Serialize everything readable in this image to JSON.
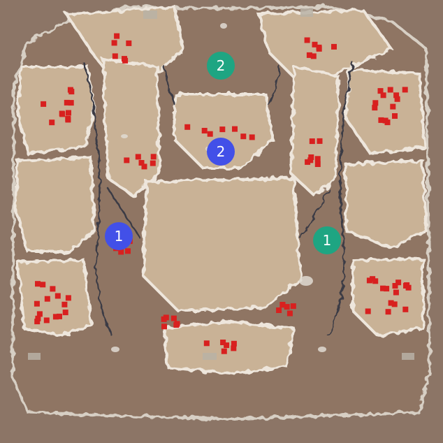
{
  "map": {
    "colors": {
      "background": "#8c7566",
      "lowground": "#8f7464",
      "highground": "#c9b296",
      "cliff_edge": "#e7e0d6",
      "cliff_shadow": "#3a3a44",
      "mineral": "#d8201f",
      "doodad": "#b9b2a6"
    },
    "start_locations": [
      {
        "label": "2",
        "team": "green",
        "color": "#1ea582"
      },
      {
        "label": "2",
        "team": "blue",
        "color": "#4250e8"
      },
      {
        "label": "1",
        "team": "blue",
        "color": "#4250e8"
      },
      {
        "label": "1",
        "team": "green",
        "color": "#1ea582"
      }
    ]
  }
}
